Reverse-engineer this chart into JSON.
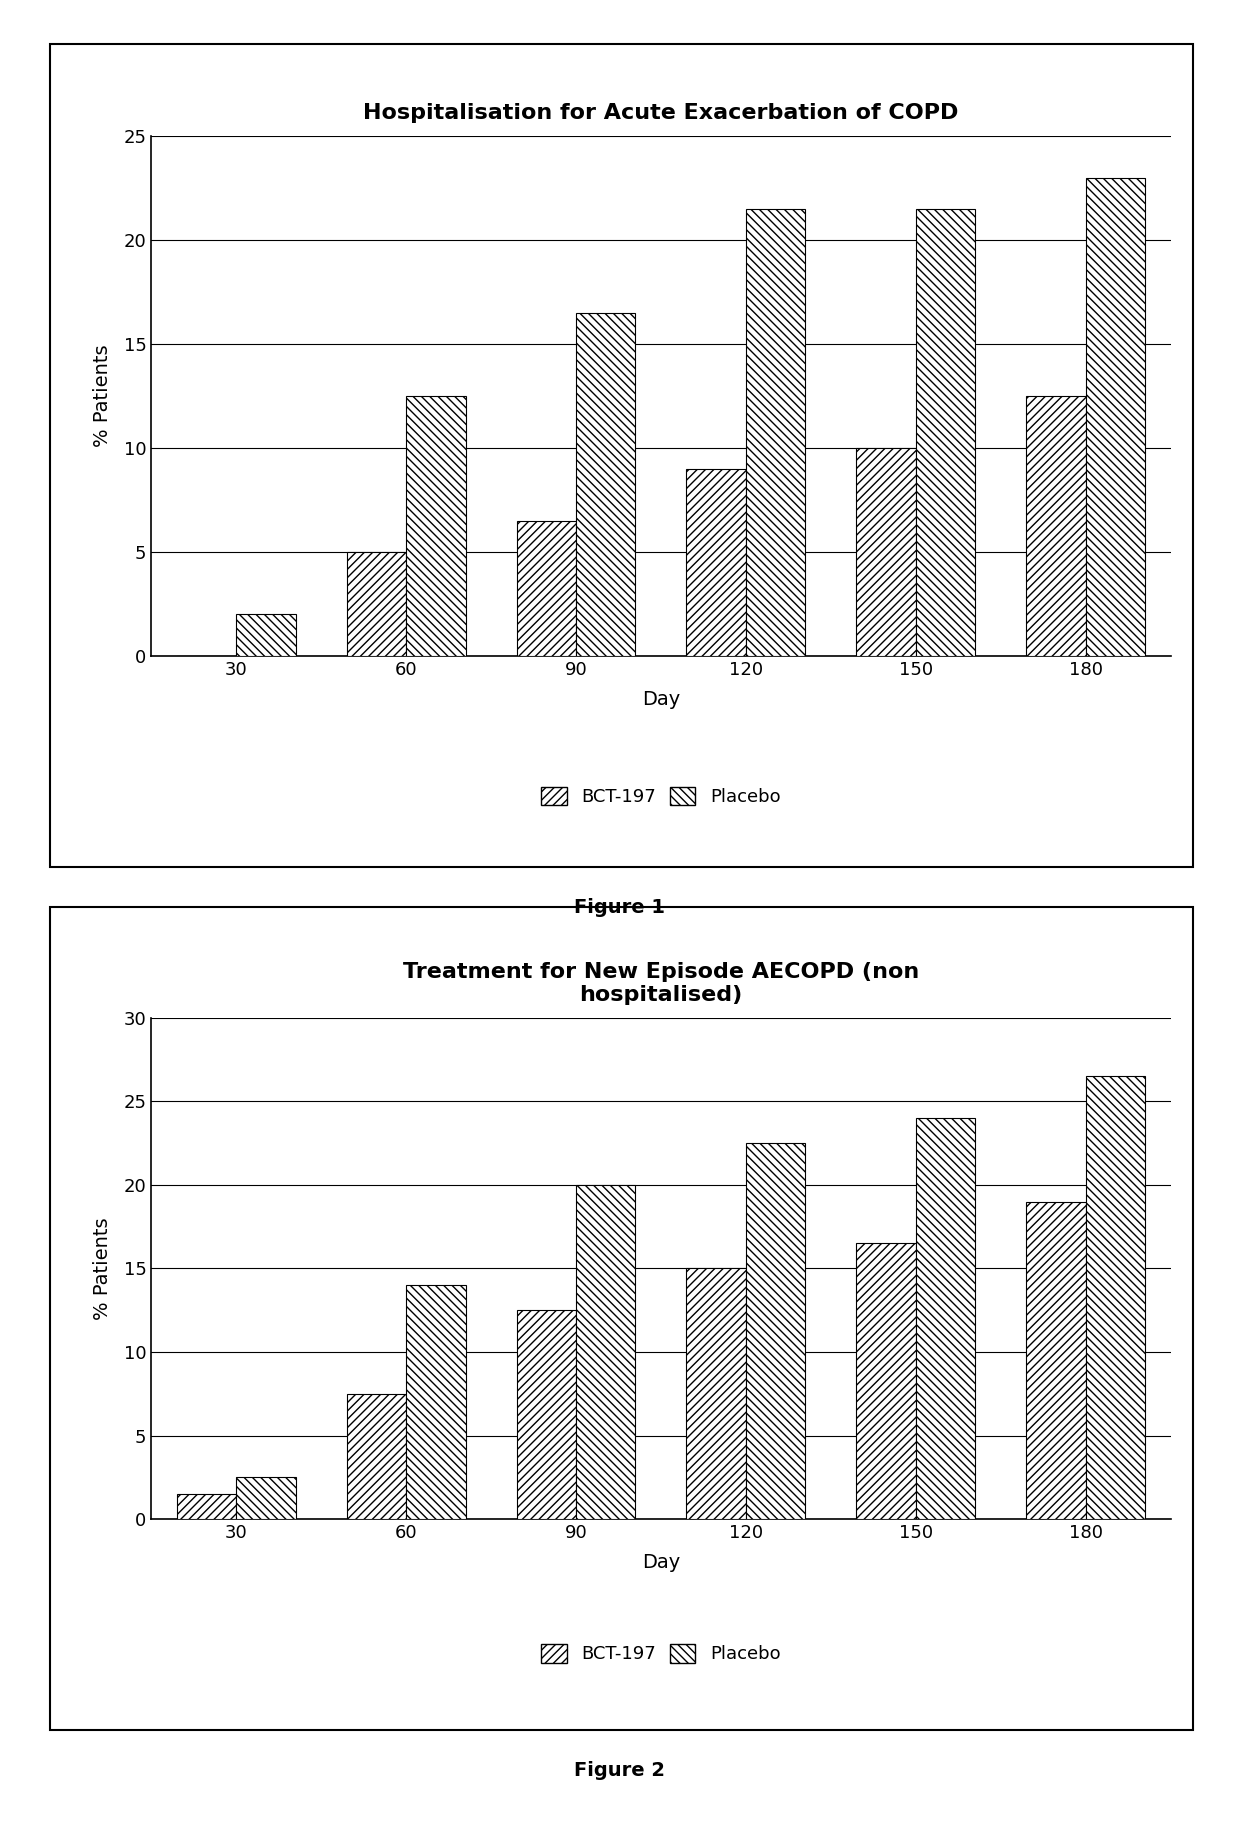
{
  "fig1": {
    "title": "Hospitalisation for Acute Exacerbation of COPD",
    "days": [
      30,
      60,
      90,
      120,
      150,
      180
    ],
    "bct197": [
      0,
      5,
      6.5,
      9,
      10,
      12.5
    ],
    "placebo": [
      2,
      12.5,
      16.5,
      21.5,
      21.5,
      23
    ],
    "ylim": [
      0,
      25
    ],
    "yticks": [
      0,
      5,
      10,
      15,
      20,
      25
    ],
    "ylabel": "% Patients",
    "xlabel": "Day",
    "caption": "Figure 1"
  },
  "fig2": {
    "title": "Treatment for New Episode AECOPD (non\nhospitalised)",
    "days": [
      30,
      60,
      90,
      120,
      150,
      180
    ],
    "bct197": [
      1.5,
      7.5,
      12.5,
      15,
      16.5,
      19
    ],
    "placebo": [
      2.5,
      14,
      20,
      22.5,
      24,
      26.5
    ],
    "ylim": [
      0,
      30
    ],
    "yticks": [
      0,
      5,
      10,
      15,
      20,
      25,
      30
    ],
    "ylabel": "% Patients",
    "xlabel": "Day",
    "caption": "Figure 2"
  },
  "legend_labels": [
    "BCT-197",
    "Placebo"
  ],
  "bar_width": 0.35,
  "hatch_bct": "////",
  "hatch_placebo": "\\\\\\\\",
  "edgecolor": "#000000",
  "facecolor": "#ffffff",
  "background_color": "#ffffff",
  "panel_bg": "#ffffff",
  "title_fontsize": 16,
  "label_fontsize": 14,
  "tick_fontsize": 13,
  "legend_fontsize": 13,
  "caption_fontsize": 14
}
